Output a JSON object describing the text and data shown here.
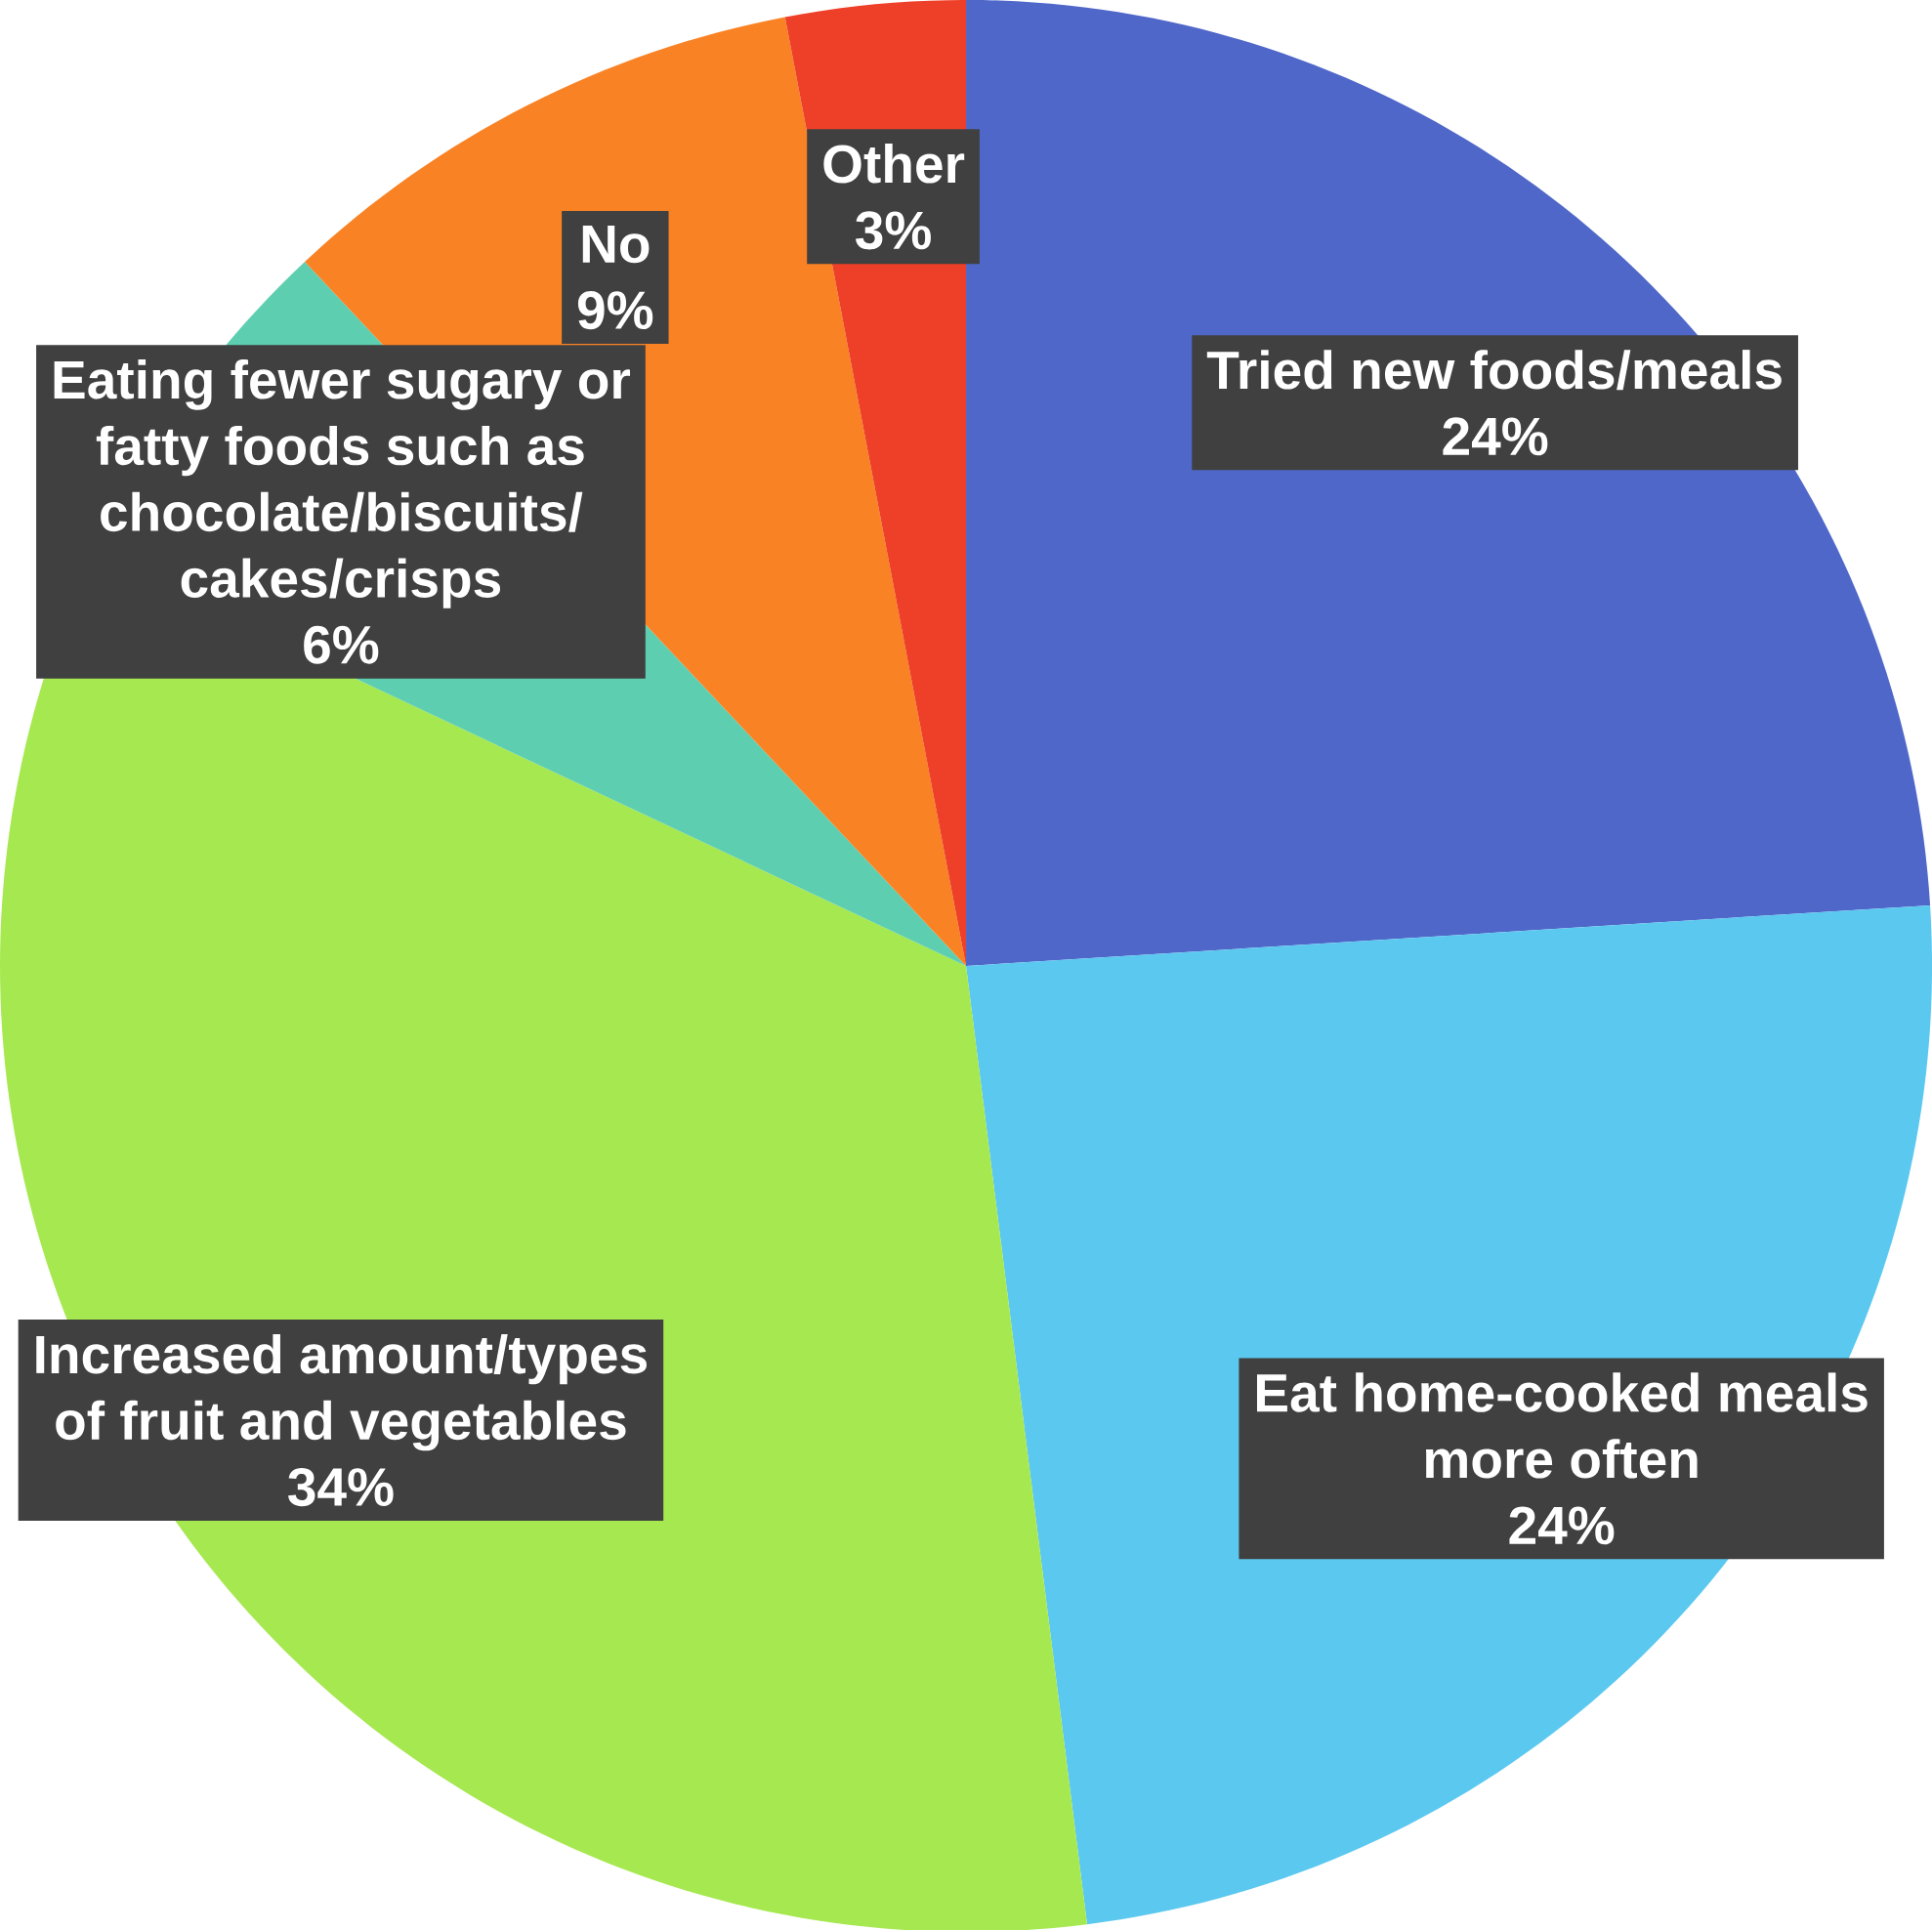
{
  "chart_data": {
    "type": "pie",
    "categories": [
      "Tried new foods/meals",
      "Eat home-cooked meals more often",
      "Increased amount/types of fruit and vegetables",
      "Eating fewer sugary or fatty foods such as chocolate/biscuits/cakes/crisps",
      "No",
      "Other"
    ],
    "values": [
      24,
      24,
      34,
      6,
      9,
      3
    ],
    "value_labels": [
      "24%",
      "24%",
      "34%",
      "6%",
      "9%",
      "3%"
    ],
    "colors": [
      "#4f67c8",
      "#5bc8f0",
      "#a6e84f",
      "#5dcfb0",
      "#f98224",
      "#ee4028"
    ]
  }
}
